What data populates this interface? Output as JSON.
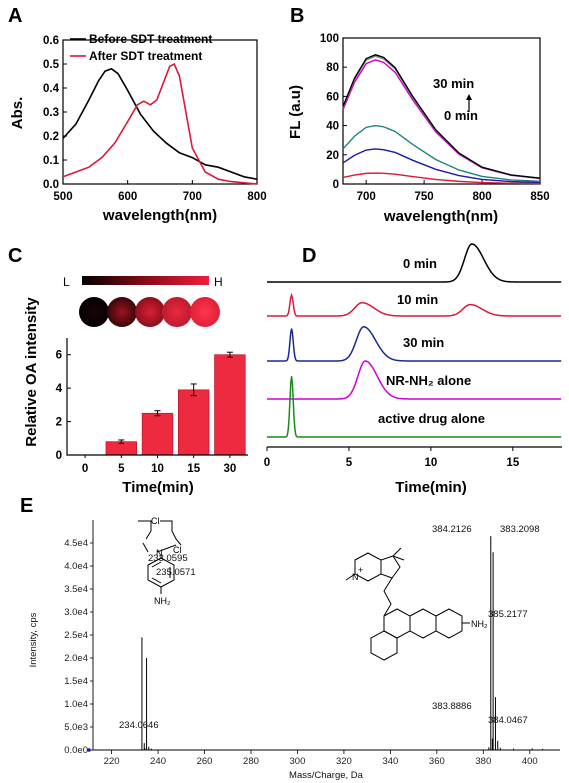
{
  "chart_data": [
    {
      "panel": "A",
      "type": "line",
      "xlabel": "wavelength(nm)",
      "ylabel": "Abs.",
      "xlim": [
        500,
        800
      ],
      "ylim": [
        0.0,
        0.6
      ],
      "xticks": [
        "500",
        "600",
        "700",
        "800"
      ],
      "yticks": [
        "0.0",
        "0.1",
        "0.2",
        "0.3",
        "0.4",
        "0.5",
        "0.6"
      ],
      "legend": "top-right",
      "series": [
        {
          "name": "Before SDT treatment",
          "color": "#000000",
          "x": [
            500,
            520,
            540,
            555,
            565,
            575,
            585,
            600,
            620,
            640,
            660,
            680,
            700,
            720,
            740,
            760,
            780,
            800
          ],
          "y": [
            0.19,
            0.25,
            0.35,
            0.43,
            0.47,
            0.48,
            0.46,
            0.39,
            0.29,
            0.22,
            0.17,
            0.13,
            0.11,
            0.08,
            0.07,
            0.05,
            0.03,
            0.02
          ]
        },
        {
          "name": "After SDT treatment",
          "color": "#d91a3a",
          "x": [
            500,
            520,
            540,
            560,
            580,
            600,
            615,
            625,
            635,
            645,
            655,
            665,
            672,
            680,
            690,
            700,
            720,
            740,
            760,
            780,
            800
          ],
          "y": [
            0.03,
            0.05,
            0.07,
            0.11,
            0.17,
            0.26,
            0.33,
            0.345,
            0.33,
            0.35,
            0.42,
            0.49,
            0.5,
            0.45,
            0.3,
            0.15,
            0.05,
            0.02,
            0.01,
            0.005,
            0.0
          ]
        }
      ]
    },
    {
      "panel": "B",
      "type": "line",
      "xlabel": "wavelength(nm)",
      "ylabel": "FL (a.u)",
      "xlim": [
        680,
        850
      ],
      "ylim": [
        0,
        100
      ],
      "xticks": [
        "700",
        "750",
        "800",
        "850"
      ],
      "yticks": [
        "0",
        "20",
        "40",
        "60",
        "80",
        "100"
      ],
      "annotations": [
        "30 min",
        "0 min"
      ],
      "x": [
        680,
        690,
        700,
        708,
        715,
        725,
        740,
        760,
        780,
        800,
        825,
        850
      ],
      "series": [
        {
          "color": "#d91a3a",
          "peak": 7.5
        },
        {
          "color": "#1a1aa8",
          "peak": 24
        },
        {
          "color": "#208080",
          "peak": 40
        },
        {
          "color": "#d000d0",
          "peak": 85
        },
        {
          "color": "#8a8a8a",
          "peak": 87.5
        },
        {
          "color": "#000000",
          "peak": 88.5
        }
      ]
    },
    {
      "panel": "C",
      "type": "bar",
      "xlabel": "Time(min)",
      "ylabel": "Relative OA intensity",
      "categories": [
        "0",
        "5",
        "10",
        "15",
        "30"
      ],
      "values": [
        0.0,
        0.8,
        2.5,
        3.9,
        6.0
      ],
      "errors": [
        0.0,
        0.1,
        0.15,
        0.35,
        0.15
      ],
      "ylim": [
        0,
        7
      ],
      "yticks": [
        "0",
        "2",
        "4",
        "6"
      ],
      "colorbar": {
        "low": "L",
        "high": "H"
      }
    },
    {
      "panel": "D",
      "type": "line",
      "xlabel": "Time(min)",
      "xlim": [
        0,
        18
      ],
      "xticks": [
        "0",
        "5",
        "10",
        "15"
      ],
      "traces": [
        {
          "label": "0 min",
          "color": "#000000",
          "peaks": [
            [
              12.5,
              1.0
            ]
          ]
        },
        {
          "label": "10 min",
          "color": "#d91a3a",
          "peaks": [
            [
              1.5,
              0.55
            ],
            [
              5.8,
              0.35
            ],
            [
              12.4,
              0.3
            ]
          ]
        },
        {
          "label": "30 min",
          "color": "#1a2a8a",
          "peaks": [
            [
              1.5,
              0.85
            ],
            [
              5.9,
              0.9
            ]
          ]
        },
        {
          "label": "NR-NH₂ alone",
          "color": "#d000d0",
          "peaks": [
            [
              6.0,
              1.0
            ]
          ]
        },
        {
          "label": "active drug alone",
          "color": "#1a8a1a",
          "peaks": [
            [
              1.5,
              1.6
            ]
          ]
        }
      ]
    },
    {
      "panel": "E",
      "type": "bar",
      "xlabel": "Mass/Charge, Da",
      "ylabel": "Intensity, cps",
      "xlim": [
        212,
        413
      ],
      "ylim": [
        0,
        50000
      ],
      "xticks": [
        "220",
        "240",
        "260",
        "280",
        "300",
        "320",
        "340",
        "360",
        "380",
        "400"
      ],
      "yticks": [
        "0.0e0",
        "5.0e3",
        "1.0e4",
        "1.5e4",
        "2.0e4",
        "2.5e4",
        "3.0e4",
        "3.5e4",
        "4.0e4",
        "4.5e4"
      ],
      "peaks": [
        {
          "mz": 233.0595,
          "intensity": 24500,
          "label": "233.0595"
        },
        {
          "mz": 235.0571,
          "intensity": 20000,
          "label": "235.0571"
        },
        {
          "mz": 234.0646,
          "intensity": 1500,
          "label": "234.0646"
        },
        {
          "mz": 234.3,
          "intensity": 400
        },
        {
          "mz": 236.0,
          "intensity": 700
        },
        {
          "mz": 237.1,
          "intensity": 300
        },
        {
          "mz": 383.2098,
          "intensity": 46500,
          "label": "383.2098"
        },
        {
          "mz": 384.2126,
          "intensity": 43000,
          "label": "384.2126"
        },
        {
          "mz": 385.2177,
          "intensity": 11500,
          "label": "385.2177"
        },
        {
          "mz": 383.8886,
          "intensity": 2500,
          "label": "383.8886"
        },
        {
          "mz": 384.0467,
          "intensity": 1200,
          "label": "384.0467"
        },
        {
          "mz": 382.4,
          "intensity": 600
        },
        {
          "mz": 386.2,
          "intensity": 2000
        },
        {
          "mz": 387.3,
          "intensity": 500
        },
        {
          "mz": 393.0,
          "intensity": 300
        },
        {
          "mz": 401.0,
          "intensity": 350
        },
        {
          "mz": 405.5,
          "intensity": 250
        }
      ],
      "structure_labels": [
        "Cl",
        "Cl",
        "N",
        "NH₂",
        "N",
        "+",
        "NH₂"
      ]
    }
  ]
}
